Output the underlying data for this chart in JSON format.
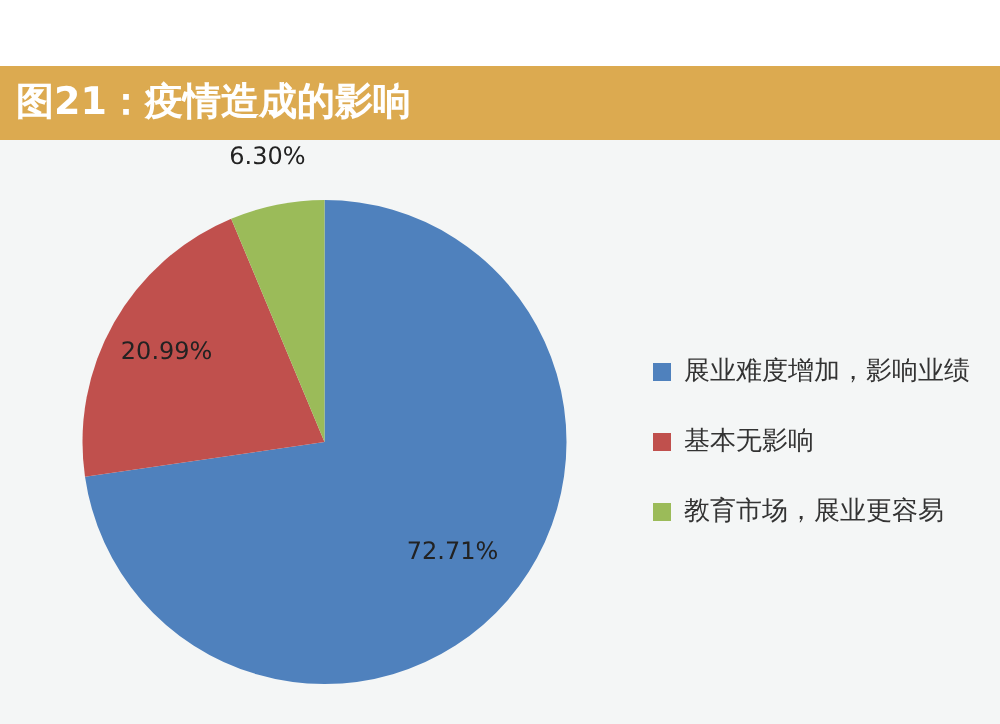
{
  "chart_data": {
    "type": "pie",
    "title": "图21：疫情造成的影响",
    "categories": [
      "展业难度增加，影响业绩",
      "基本无影响",
      "教育市场，展业更容易"
    ],
    "values": [
      72.71,
      20.99,
      6.3
    ],
    "colors": [
      "#4f81bd",
      "#c0504d",
      "#9bbb59"
    ],
    "value_labels": [
      "72.71%",
      "20.99%",
      "6.30%"
    ],
    "legend": "right"
  }
}
